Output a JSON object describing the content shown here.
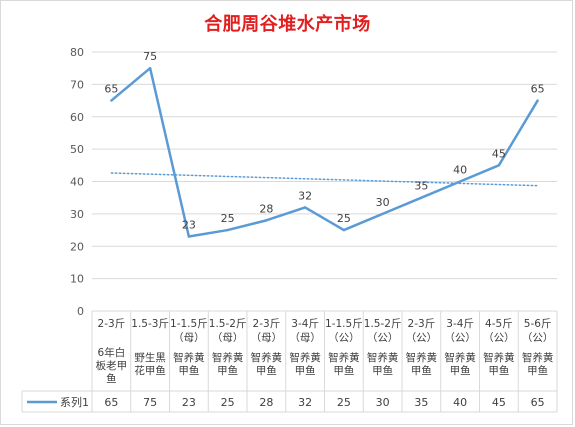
{
  "title": "合肥周谷堆水产市场",
  "chart_data": {
    "type": "line",
    "title": "合肥周谷堆水产市场",
    "categories": [
      {
        "spec": "2-3斤",
        "spec_lines": [
          "2-3斤"
        ],
        "name": "6年白板老甲鱼",
        "name_lines": [
          "6年白",
          "板老甲",
          "鱼"
        ]
      },
      {
        "spec": "1.5-3斤",
        "spec_lines": [
          "1.5-3斤"
        ],
        "name": "野生黑花甲鱼",
        "name_lines": [
          "野生黑",
          "花甲鱼"
        ]
      },
      {
        "spec": "1-1.5斤（母）",
        "spec_lines": [
          "1-1.5斤",
          "（母）"
        ],
        "name": "智养黄甲鱼",
        "name_lines": [
          "智养黄",
          "甲鱼"
        ]
      },
      {
        "spec": "1.5-2斤（母）",
        "spec_lines": [
          "1.5-2斤",
          "（母）"
        ],
        "name": "智养黄甲鱼",
        "name_lines": [
          "智养黄",
          "甲鱼"
        ]
      },
      {
        "spec": "2-3斤（母）",
        "spec_lines": [
          "2-3斤",
          "（母）"
        ],
        "name": "智养黄甲鱼",
        "name_lines": [
          "智养黄",
          "甲鱼"
        ]
      },
      {
        "spec": "3-4斤（母）",
        "spec_lines": [
          "3-4斤",
          "（母）"
        ],
        "name": "智养黄甲鱼",
        "name_lines": [
          "智养黄",
          "甲鱼"
        ]
      },
      {
        "spec": "1-1.5斤（公）",
        "spec_lines": [
          "1-1.5斤",
          "（公）"
        ],
        "name": "智养黄甲鱼",
        "name_lines": [
          "智养黄",
          "甲鱼"
        ]
      },
      {
        "spec": "1.5-2斤（公）",
        "spec_lines": [
          "1.5-2斤",
          "（公）"
        ],
        "name": "智养黄甲鱼",
        "name_lines": [
          "智养黄",
          "甲鱼"
        ]
      },
      {
        "spec": "2-3斤（公）",
        "spec_lines": [
          "2-3斤",
          "（公）"
        ],
        "name": "智养黄甲鱼",
        "name_lines": [
          "智养黄",
          "甲鱼"
        ]
      },
      {
        "spec": "3-4斤（公）",
        "spec_lines": [
          "3-4斤",
          "（公）"
        ],
        "name": "智养黄甲鱼",
        "name_lines": [
          "智养黄",
          "甲鱼"
        ]
      },
      {
        "spec": "4-5斤（公）",
        "spec_lines": [
          "4-5斤",
          "（公）"
        ],
        "name": "智养黄甲鱼",
        "name_lines": [
          "智养黄",
          "甲鱼"
        ]
      },
      {
        "spec": "5-6斤（公）",
        "spec_lines": [
          "5-6斤",
          "（公）"
        ],
        "name": "智养黄甲鱼",
        "name_lines": [
          "智养黄",
          "甲鱼"
        ]
      }
    ],
    "series": [
      {
        "name": "系列1",
        "values": [
          65,
          75,
          23,
          25,
          28,
          32,
          25,
          30,
          35,
          40,
          45,
          65
        ],
        "color": "#5b9bd5"
      }
    ],
    "trendline": {
      "type": "linear",
      "style": "dotted",
      "color": "#5b9bd5"
    },
    "ylim": [
      0,
      80
    ],
    "yticks": [
      0,
      10,
      20,
      30,
      40,
      50,
      60,
      70,
      80
    ],
    "grid": true,
    "legend": "data-table",
    "data_labels": true
  }
}
